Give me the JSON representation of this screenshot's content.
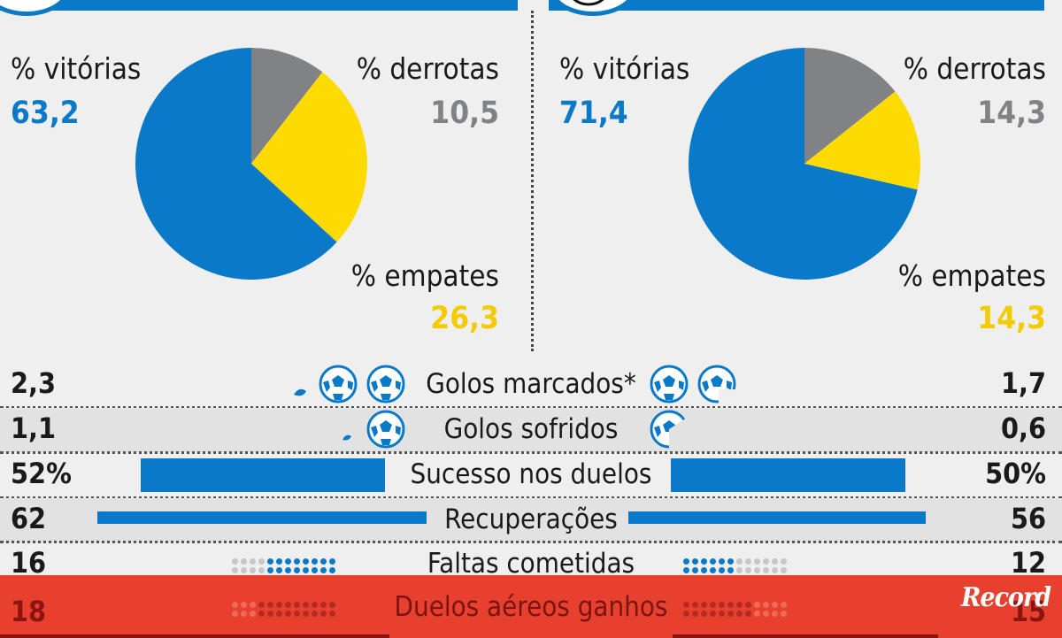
{
  "chart_data": [
    {
      "type": "pie",
      "slices": [
        {
          "label": "% vitórias",
          "value": 63.2,
          "display": "63,2",
          "color": "#0a7ac8"
        },
        {
          "label": "% derrotas",
          "value": 10.5,
          "display": "10,5",
          "color": "#808285"
        },
        {
          "label": "% empates",
          "value": 26.3,
          "display": "26,3",
          "color": "#fddb00"
        }
      ]
    },
    {
      "type": "pie",
      "slices": [
        {
          "label": "% vitórias",
          "value": 71.4,
          "display": "71,4",
          "color": "#0a7ac8"
        },
        {
          "label": "% derrotas",
          "value": 14.3,
          "display": "14,3",
          "color": "#808285"
        },
        {
          "label": "% empates",
          "value": 14.3,
          "display": "14,3",
          "color": "#fddb00"
        }
      ]
    },
    {
      "type": "table",
      "rows": [
        {
          "label": "Golos marcados*",
          "left": "2,3",
          "right": "1,7",
          "left_value": 2.3,
          "right_value": 1.7
        },
        {
          "label": "Golos sofridos",
          "left": "1,1",
          "right": "0,6",
          "left_value": 1.1,
          "right_value": 0.6
        },
        {
          "label": "Sucesso nos duelos",
          "left": "52%",
          "right": "50%",
          "left_value": 52,
          "right_value": 50
        },
        {
          "label": "Recuperações",
          "left": "62",
          "right": "56",
          "left_value": 62,
          "right_value": 56
        },
        {
          "label": "Faltas cometidas",
          "left": "16",
          "right": "12",
          "left_value": 16,
          "right_value": 12
        },
        {
          "label": "Duelos aéreos ganhos",
          "left": "18",
          "right": "15",
          "left_value": 18,
          "right_value": 15
        }
      ]
    }
  ],
  "brand": "Record",
  "colors": {
    "blue": "#0a7ac8",
    "gray": "#808285",
    "yellow": "#fddb00",
    "red": "#e8402e",
    "dark_red": "#8b1410"
  }
}
